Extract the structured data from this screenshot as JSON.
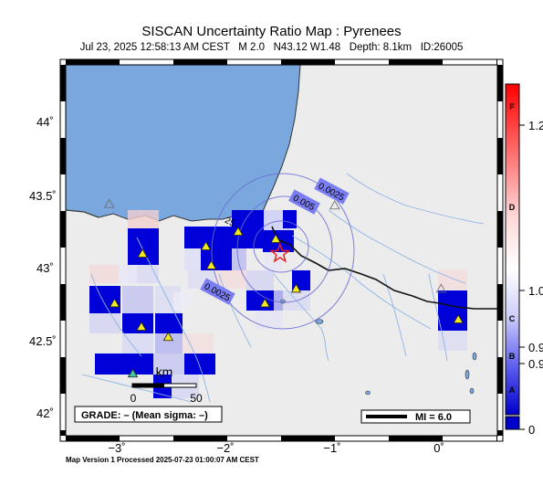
{
  "title": "SISCAN Uncertainty Ratio Map : Pyrenees",
  "subtitle": "Jul 23, 2025 12:58:13 AM CEST   M 2.0   N43.12 W1.48   Depth: 8.1km   ID:26005",
  "footer": "Map Version 1 Processed 2025-07-23 01:00:07 AM CEST",
  "axes": {
    "lat_labels": [
      "44˚",
      "43.5˚",
      "43˚",
      "42.5˚",
      "42˚"
    ],
    "lon_labels": [
      "−3˚",
      "−2˚",
      "−1˚",
      "0˚"
    ]
  },
  "contours": [
    "0.0025",
    "0.005",
    "0.0025",
    "25"
  ],
  "grade_box": "GRADE: – (Mean sigma: –)",
  "mi_box": "MI = 6.0",
  "scale": {
    "unit": "km",
    "zero": "0",
    "max": "50"
  },
  "colorbar": {
    "letters": [
      "F",
      "D",
      "C",
      "B",
      "A"
    ],
    "values": [
      "1.2",
      "1.0",
      "0.9",
      "0.9",
      "0"
    ]
  },
  "colors": {
    "sea": "#7aa7de",
    "land": "#ececec",
    "cell_high": "#0000d8",
    "epicenter": "#e8221c",
    "station": "#f2ea1e"
  },
  "epicenter": {
    "lat": 43.12,
    "lon": -1.48
  },
  "stations_yellow": [
    {
      "lat": 43.12,
      "lon": -2.76
    },
    {
      "lat": 43.17,
      "lon": -2.17
    },
    {
      "lat": 43.04,
      "lon": -2.12
    },
    {
      "lat": 43.27,
      "lon": -1.87
    },
    {
      "lat": 43.22,
      "lon": -1.52
    },
    {
      "lat": 42.88,
      "lon": -1.33
    },
    {
      "lat": 42.78,
      "lon": -1.62
    },
    {
      "lat": 42.78,
      "lon": -3.02
    },
    {
      "lat": 42.62,
      "lon": -2.77
    },
    {
      "lat": 42.55,
      "lon": -2.52
    },
    {
      "lat": 42.67,
      "lon": 0.18
    }
  ],
  "stations_other": [
    {
      "lat": 43.46,
      "lon": -3.07,
      "kind": "gray"
    },
    {
      "lat": 43.45,
      "lon": -0.97,
      "kind": "gray"
    },
    {
      "lat": 42.88,
      "lon": 0.02,
      "kind": "gray"
    },
    {
      "lat": 42.3,
      "lon": -2.85,
      "kind": "green"
    }
  ]
}
